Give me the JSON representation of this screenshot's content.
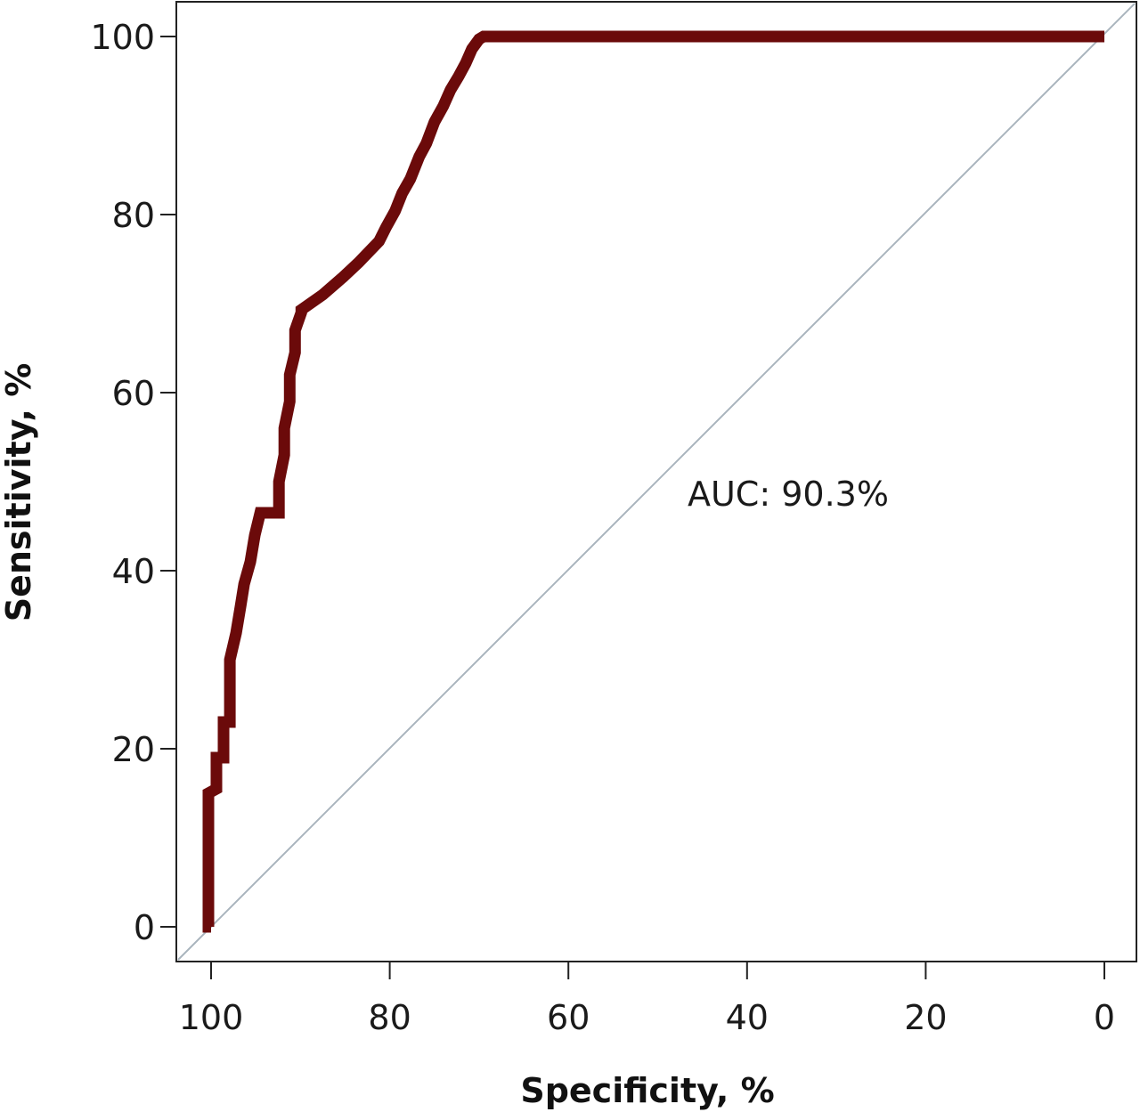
{
  "chart_data": {
    "type": "line",
    "xlabel": "Specificity, %",
    "ylabel": "Sensitivity, %",
    "xlim": [
      100,
      0
    ],
    "ylim": [
      0,
      100
    ],
    "x_reversed": true,
    "xticks": [
      100,
      80,
      60,
      40,
      20,
      0
    ],
    "yticks": [
      0,
      20,
      40,
      60,
      80,
      100
    ],
    "grid": false,
    "annotation": "AUC: 90.3%",
    "reference_line": [
      [
        100,
        0
      ],
      [
        0,
        100
      ]
    ],
    "series": [
      {
        "color": "#6b0a0a",
        "points": [
          [
            100,
            0
          ],
          [
            100.3,
            0
          ],
          [
            100.3,
            15
          ],
          [
            99.4,
            15.5
          ],
          [
            99.4,
            19
          ],
          [
            98.6,
            19
          ],
          [
            98.6,
            23
          ],
          [
            97.9,
            23
          ],
          [
            97.9,
            30
          ],
          [
            97.2,
            33
          ],
          [
            96.7,
            36
          ],
          [
            96.3,
            38.5
          ],
          [
            95.6,
            41
          ],
          [
            95.1,
            44
          ],
          [
            94.5,
            46.5
          ],
          [
            92.4,
            46.5
          ],
          [
            92.4,
            50
          ],
          [
            91.8,
            53
          ],
          [
            91.8,
            56
          ],
          [
            91.2,
            59
          ],
          [
            91.2,
            62
          ],
          [
            90.6,
            64.5
          ],
          [
            90.6,
            67
          ],
          [
            89.9,
            69
          ],
          [
            89.9,
            69.3
          ],
          [
            87.5,
            71
          ],
          [
            85.2,
            73
          ],
          [
            83.5,
            74.6
          ],
          [
            81.2,
            77
          ],
          [
            80.4,
            78.6
          ],
          [
            79.4,
            80.4
          ],
          [
            78.6,
            82.4
          ],
          [
            77.7,
            84
          ],
          [
            76.7,
            86.5
          ],
          [
            75.9,
            88
          ],
          [
            75.0,
            90.4
          ],
          [
            74.0,
            92.2
          ],
          [
            73.2,
            94
          ],
          [
            72.3,
            95.5
          ],
          [
            71.5,
            97
          ],
          [
            70.8,
            98.6
          ],
          [
            70.0,
            99.7
          ],
          [
            69.5,
            100
          ],
          [
            0,
            100
          ]
        ]
      }
    ]
  }
}
